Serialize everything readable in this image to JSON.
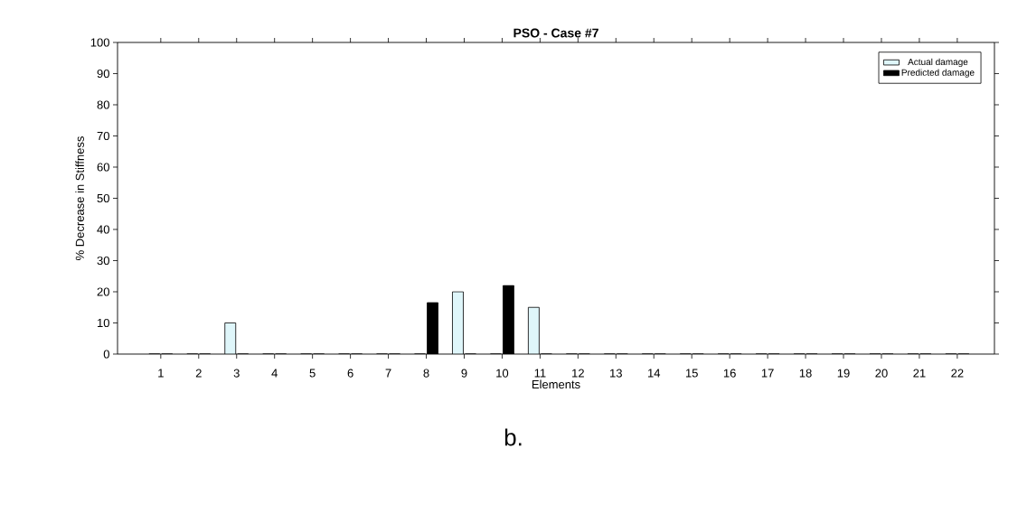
{
  "chart_data": {
    "type": "bar",
    "title": "PSO - Case #7",
    "xlabel": "Elements",
    "ylabel": "% Decrease in Stiffness",
    "categories": [
      "1",
      "2",
      "3",
      "4",
      "5",
      "6",
      "7",
      "8",
      "9",
      "10",
      "11",
      "12",
      "13",
      "14",
      "15",
      "16",
      "17",
      "18",
      "19",
      "20",
      "21",
      "22"
    ],
    "series": [
      {
        "name": "Actual damage",
        "color": "#dff6fa",
        "values": [
          0,
          0,
          10,
          0,
          0,
          0,
          0,
          0,
          20,
          0,
          15,
          0,
          0,
          0,
          0,
          0,
          0,
          0,
          0,
          0,
          0,
          0
        ]
      },
      {
        "name": "Predicted damage",
        "color": "#000000",
        "values": [
          0,
          0,
          0,
          0,
          0,
          0,
          0,
          16.5,
          0,
          22,
          0,
          0,
          0,
          0,
          0,
          0,
          0,
          0,
          0,
          0,
          0,
          0
        ]
      }
    ],
    "ylim": [
      0,
      100
    ],
    "yticks": [
      0,
      10,
      20,
      30,
      40,
      50,
      60,
      70,
      80,
      90,
      100
    ],
    "legend": "top right",
    "grid": false,
    "annotations": [
      "b."
    ]
  }
}
